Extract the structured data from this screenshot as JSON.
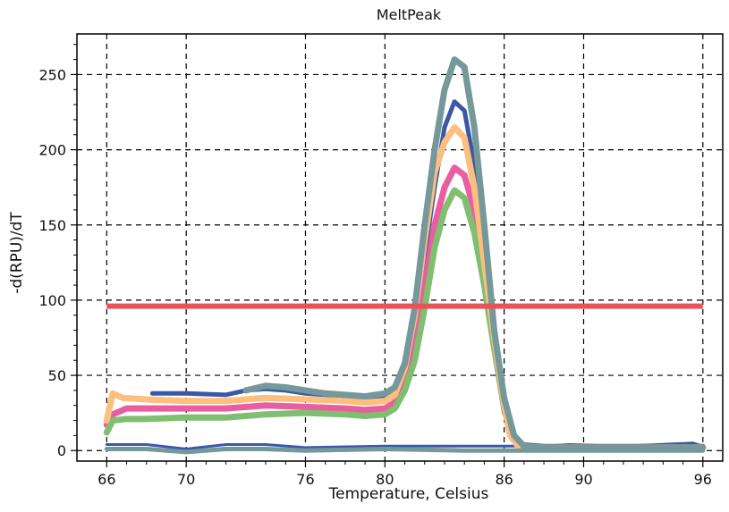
{
  "chart_data": {
    "type": "line",
    "title": "MeltPeak",
    "xlabel": "Temperature, Celsius",
    "ylabel": "-d(RPU)/dT",
    "xlim": [
      64.5,
      97
    ],
    "ylim": [
      -7,
      277
    ],
    "x_ticks": [
      66,
      70,
      76,
      80,
      86,
      90,
      96
    ],
    "x_tick_labels": [
      "66",
      "70",
      "76",
      "80",
      "86",
      "90",
      "96"
    ],
    "y_ticks": [
      0,
      50,
      100,
      150,
      200,
      250
    ],
    "y_tick_labels": [
      "0",
      "50",
      "100",
      "150",
      "200",
      "250"
    ],
    "grid": true,
    "grid_style": "dashed",
    "legend": "none",
    "threshold": {
      "y": 96,
      "x_range": [
        66,
        96
      ],
      "color": "#e8535a"
    },
    "series": [
      {
        "color": "#3a58a8",
        "stroke": 5,
        "x": [
          68.3,
          70,
          72,
          73,
          74,
          75,
          76,
          77,
          78,
          79,
          79.8,
          80.3,
          81,
          81.5,
          82,
          82.5,
          83,
          83.5,
          84,
          84.5,
          85,
          85.5,
          86,
          86.5,
          87,
          88,
          96
        ],
        "y": [
          38,
          38,
          37,
          40,
          41,
          40,
          38,
          37,
          36,
          35,
          35,
          38,
          50,
          80,
          130,
          175,
          215,
          232,
          226,
          190,
          130,
          65,
          25,
          8,
          4,
          3,
          3
        ]
      },
      {
        "color": "#3a58a8",
        "stroke": 3,
        "x": [
          66,
          68,
          70,
          72,
          74,
          76,
          80,
          84,
          88,
          89.3,
          92,
          95.5,
          96
        ],
        "y": [
          4,
          4,
          1,
          4,
          4,
          2,
          3,
          3,
          3,
          4,
          3,
          5,
          3
        ]
      },
      {
        "color": "#e85ea0",
        "stroke": 7,
        "x": [
          66,
          66.3,
          67,
          68,
          70,
          72,
          74,
          76,
          78,
          79,
          80,
          80.5,
          81,
          81.5,
          82,
          82.5,
          83,
          83.5,
          84,
          84.5,
          85,
          85.5,
          86,
          86.3,
          86.7,
          87,
          88,
          96
        ],
        "y": [
          17,
          24,
          28,
          28,
          28,
          28,
          30,
          29,
          28,
          27,
          28,
          32,
          45,
          70,
          110,
          150,
          175,
          188,
          183,
          160,
          120,
          75,
          35,
          15,
          4,
          2,
          2,
          2
        ]
      },
      {
        "color": "#7fbf70",
        "stroke": 7,
        "x": [
          66,
          66.3,
          67,
          68,
          70,
          72,
          74,
          76,
          78,
          79,
          80,
          80.5,
          81,
          81.5,
          82,
          82.5,
          83,
          83.5,
          84,
          84.5,
          85,
          85.5,
          86,
          86.3,
          86.7,
          87,
          88,
          96
        ],
        "y": [
          12,
          20,
          21,
          21,
          22,
          22,
          24,
          25,
          24,
          23,
          24,
          28,
          40,
          60,
          95,
          135,
          160,
          173,
          168,
          145,
          110,
          68,
          30,
          12,
          3,
          2,
          2,
          2
        ]
      },
      {
        "color": "#fdbf7e",
        "stroke": 7,
        "x": [
          66,
          66.3,
          66.8,
          68,
          70,
          72,
          74,
          76,
          78,
          79,
          80,
          80.5,
          81,
          81.5,
          82,
          82.5,
          83,
          83.5,
          84,
          84.5,
          85,
          85.5,
          86,
          86.3,
          86.7,
          87,
          88,
          96
        ],
        "y": [
          20,
          38,
          35,
          34,
          33,
          33,
          35,
          34,
          33,
          32,
          33,
          37,
          55,
          90,
          140,
          185,
          205,
          215,
          208,
          175,
          125,
          75,
          30,
          10,
          3,
          2,
          2,
          2
        ]
      },
      {
        "color": "#75989b",
        "stroke": 7,
        "x": [
          73,
          74,
          75,
          76,
          77,
          78,
          79,
          80,
          80.5,
          81,
          81.5,
          82,
          82.5,
          83,
          83.5,
          84,
          84.5,
          85,
          85.5,
          86,
          86.5,
          87,
          88,
          96
        ],
        "y": [
          40,
          43,
          42,
          40,
          38,
          37,
          36,
          38,
          42,
          58,
          95,
          150,
          200,
          240,
          260,
          255,
          215,
          150,
          80,
          35,
          10,
          3,
          2,
          2
        ]
      },
      {
        "color": "#75989b",
        "stroke": 5,
        "x": [
          66,
          68,
          70,
          72,
          74,
          76,
          80,
          84,
          88,
          92,
          96
        ],
        "y": [
          1,
          1,
          -1,
          1,
          1,
          0,
          1,
          0,
          0,
          0,
          0
        ]
      }
    ]
  }
}
